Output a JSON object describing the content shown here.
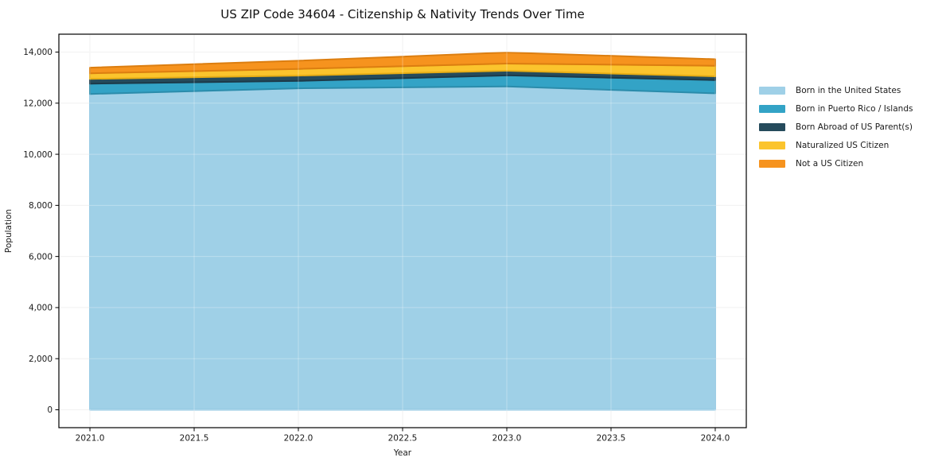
{
  "chart_data": {
    "type": "area",
    "stacked": true,
    "title": "US ZIP Code 34604 - Citizenship & Nativity Trends Over Time",
    "xlabel": "Year",
    "ylabel": "Population",
    "x": [
      2021,
      2022,
      2023,
      2024
    ],
    "series": [
      {
        "name": "Born in the United States",
        "color": "#9fd0e7",
        "edge": "#8ec6e2",
        "values": [
          12360,
          12580,
          12655,
          12385
        ]
      },
      {
        "name": "Born in Puerto Rico / Islands",
        "color": "#33a3c6",
        "edge": "#2b8cab",
        "values": [
          405,
          290,
          435,
          520
        ]
      },
      {
        "name": "Born Abroad of US Parent(s)",
        "color": "#254b5c",
        "edge": "#1c3a49",
        "values": [
          185,
          210,
          180,
          145
        ]
      },
      {
        "name": "Naturalized US Citizen",
        "color": "#fbc42d",
        "edge": "#e7ad15",
        "values": [
          220,
          260,
          280,
          415
        ]
      },
      {
        "name": "Not a US Citizen",
        "color": "#f6931e",
        "edge": "#dc7e10",
        "values": [
          220,
          320,
          435,
          255
        ]
      }
    ],
    "xticks": [
      "2021.0",
      "2021.5",
      "2022.0",
      "2022.5",
      "2023.0",
      "2023.5",
      "2024.0"
    ],
    "xtick_values": [
      2021,
      2021.5,
      2022,
      2022.5,
      2023,
      2023.5,
      2024
    ],
    "yticks": [
      "0",
      "2,000",
      "4,000",
      "6,000",
      "8,000",
      "10,000",
      "12,000",
      "14,000"
    ],
    "ytick_values": [
      0,
      2000,
      4000,
      6000,
      8000,
      10000,
      12000,
      14000
    ],
    "xlim": [
      2020.851,
      2024.149
    ],
    "ylim": [
      -700,
      14700
    ],
    "grid": true,
    "legend_position": "right",
    "spine_color": "#000000",
    "tick_label_color": "#1a1a1a",
    "grid_color": "#ededed"
  }
}
